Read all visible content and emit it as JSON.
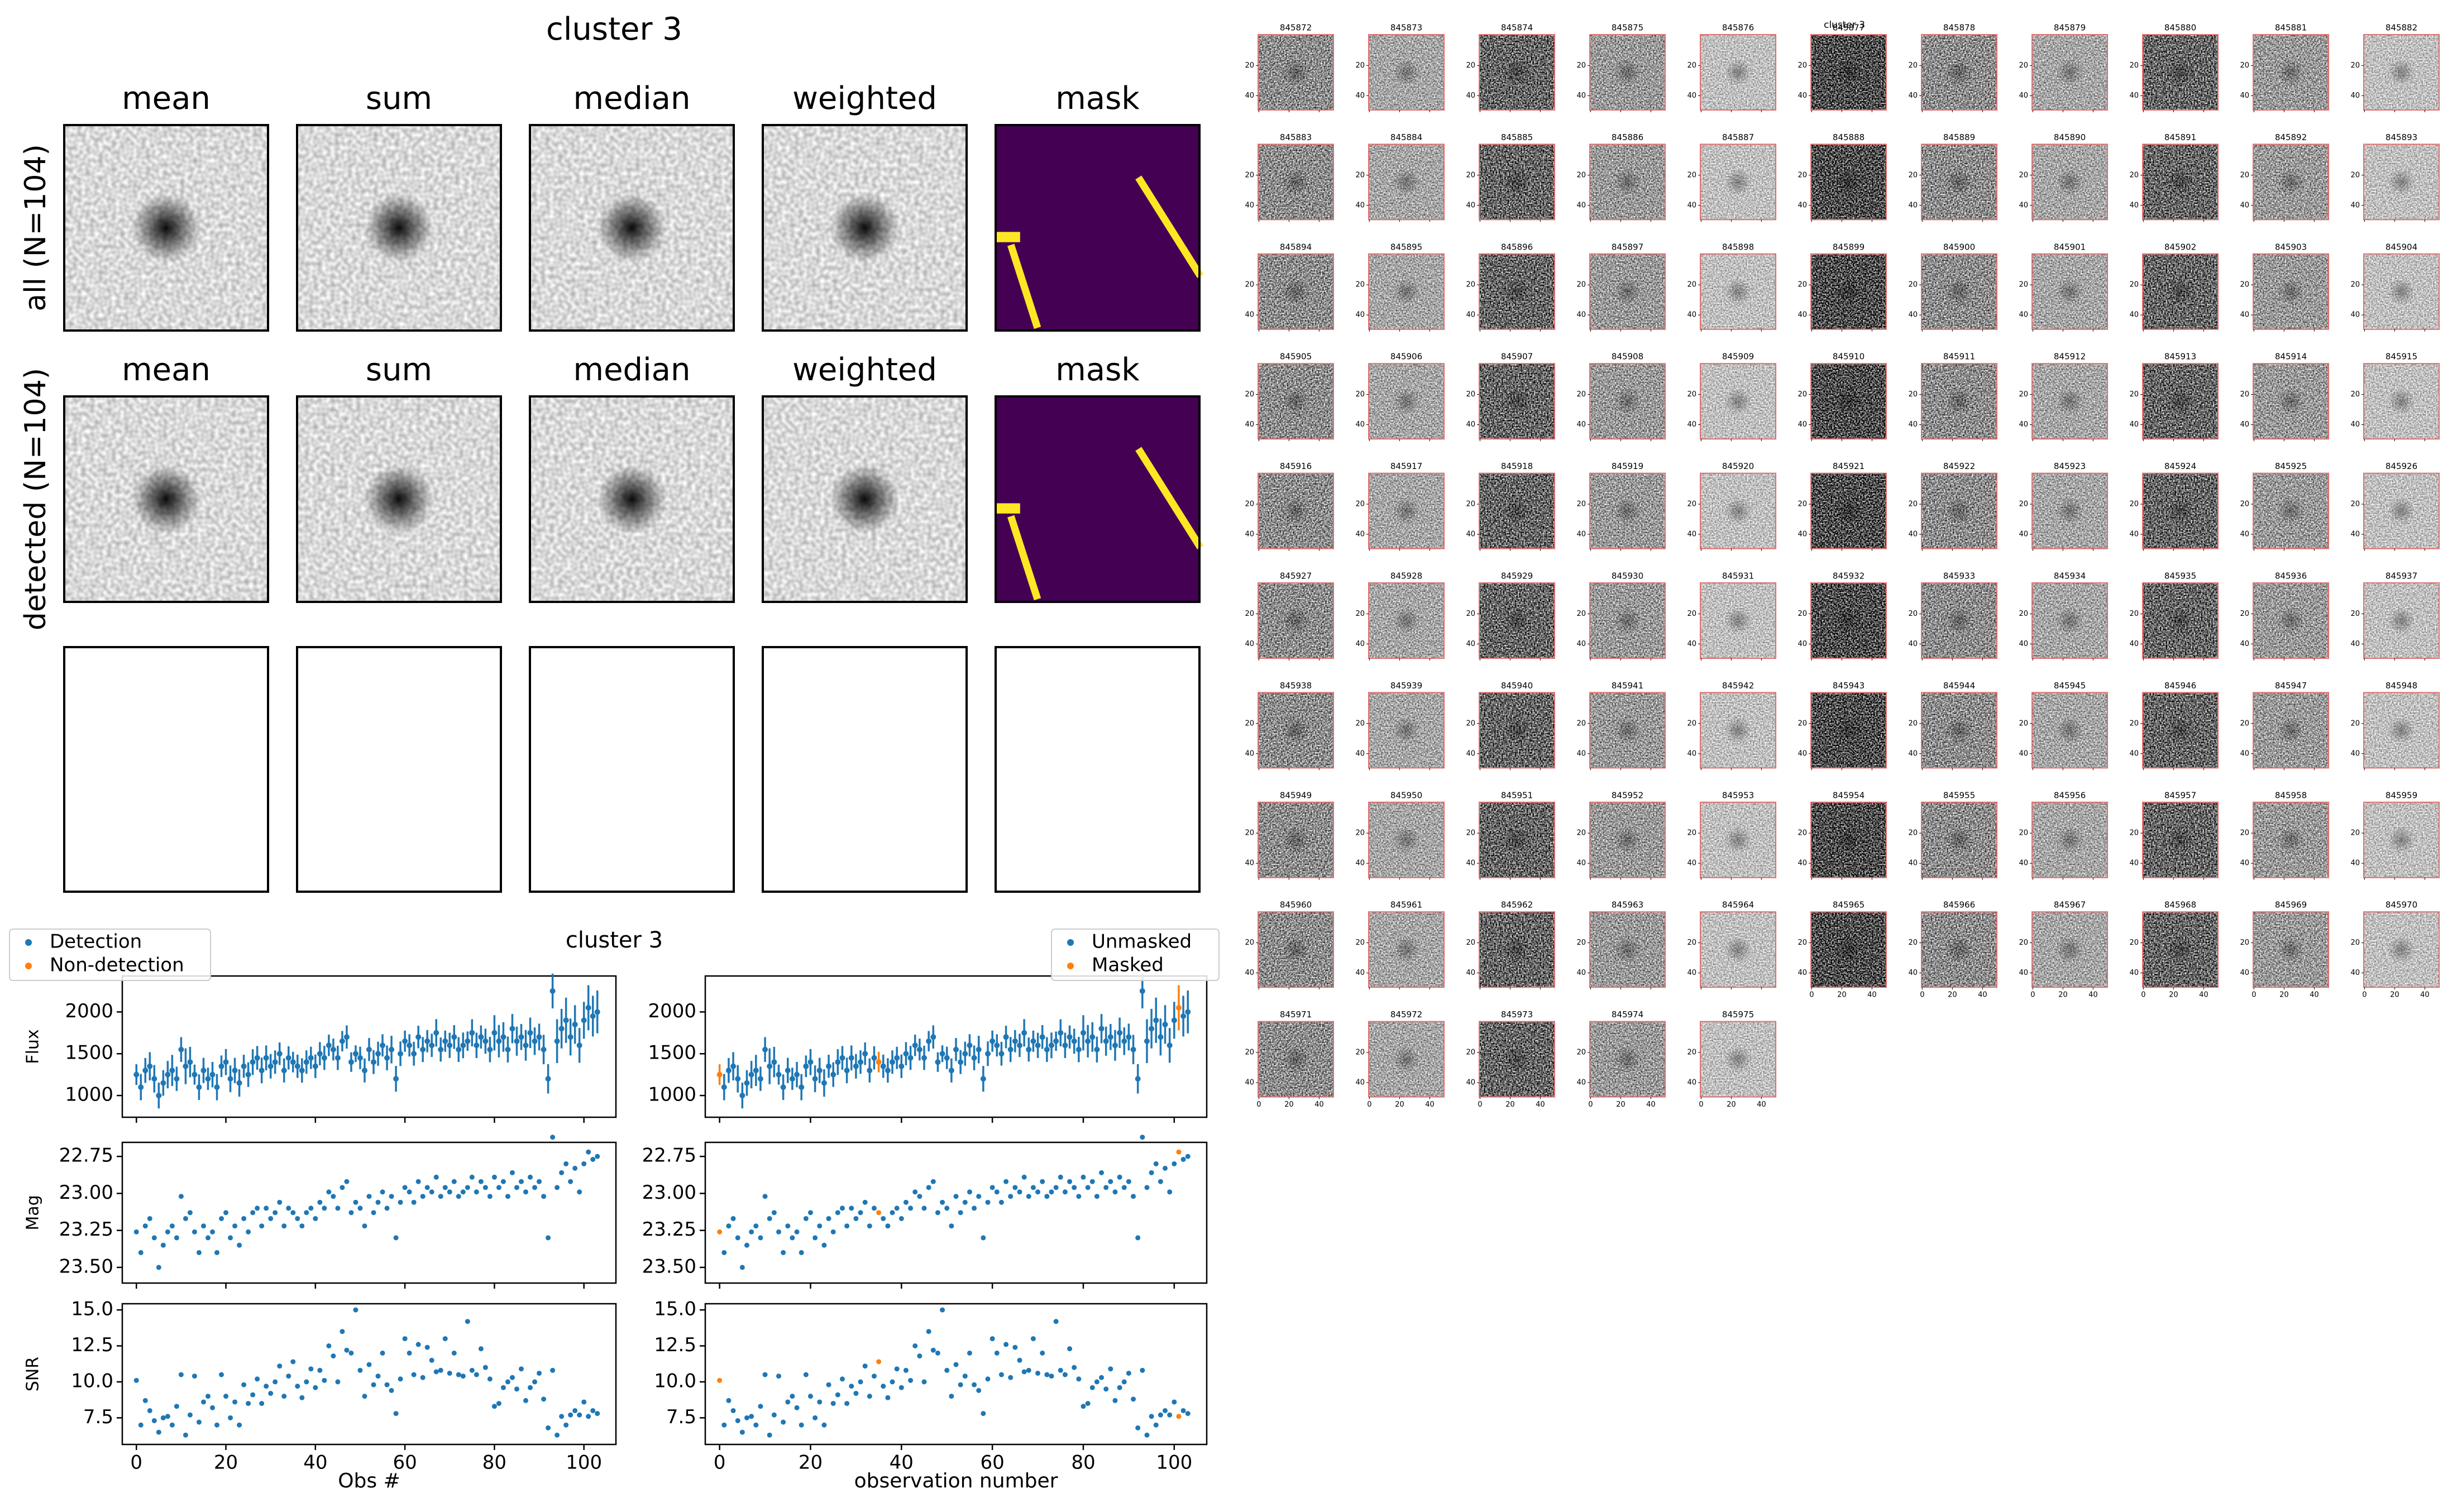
{
  "chart_data": [
    {
      "type": "image-grid",
      "title": "cluster 3",
      "columns": [
        "mean",
        "sum",
        "median",
        "weighted",
        "mask"
      ],
      "rows": [
        "all (N=104)",
        "detected (N=104)"
      ],
      "mask_colors": [
        "#440154",
        "#fde725"
      ]
    },
    {
      "type": "scatter",
      "title": "cluster 3",
      "x": [
        0,
        1,
        2,
        3,
        4,
        5,
        6,
        7,
        8,
        9,
        10,
        11,
        12,
        13,
        14,
        15,
        16,
        17,
        18,
        19,
        20,
        21,
        22,
        23,
        24,
        25,
        26,
        27,
        28,
        29,
        30,
        31,
        32,
        33,
        34,
        35,
        36,
        37,
        38,
        39,
        40,
        41,
        42,
        43,
        44,
        45,
        46,
        47,
        48,
        49,
        50,
        51,
        52,
        53,
        54,
        55,
        56,
        57,
        58,
        59,
        60,
        61,
        62,
        63,
        64,
        65,
        66,
        67,
        68,
        69,
        70,
        71,
        72,
        73,
        74,
        75,
        76,
        77,
        78,
        79,
        80,
        81,
        82,
        83,
        84,
        85,
        86,
        87,
        88,
        89,
        90,
        91,
        92,
        93,
        94,
        95,
        96,
        97,
        98,
        99,
        100,
        101,
        102,
        103
      ],
      "xlim": [
        -3.15,
        107.15
      ],
      "xticks": [
        0,
        20,
        40,
        60,
        80,
        100
      ],
      "xlabels": [
        "Obs #",
        "observation number"
      ],
      "legends": [
        [
          "Detection",
          "Non-detection"
        ],
        [
          "Unmasked",
          "Masked"
        ]
      ],
      "colors": [
        "#1f77b4",
        "#ff7f0e"
      ],
      "masked": [
        0,
        35,
        101
      ],
      "panels": [
        {
          "ylabel": "Flux",
          "ylim": [
            740,
            2430
          ],
          "yticks": [
            1000,
            1500,
            2000
          ],
          "values": [
            1250,
            1100,
            1300,
            1350,
            1200,
            1000,
            1150,
            1250,
            1300,
            1200,
            1550,
            1350,
            1400,
            1250,
            1100,
            1300,
            1200,
            1250,
            1100,
            1350,
            1400,
            1200,
            1300,
            1150,
            1350,
            1250,
            1400,
            1450,
            1300,
            1450,
            1350,
            1400,
            1500,
            1300,
            1450,
            1400,
            1350,
            1300,
            1400,
            1450,
            1350,
            1500,
            1450,
            1600,
            1550,
            1450,
            1650,
            1700,
            1400,
            1500,
            1450,
            1300,
            1550,
            1400,
            1500,
            1600,
            1450,
            1550,
            1200,
            1500,
            1650,
            1600,
            1500,
            1700,
            1550,
            1650,
            1600,
            1750,
            1550,
            1650,
            1600,
            1700,
            1550,
            1600,
            1650,
            1750,
            1600,
            1700,
            1650,
            1550,
            1750,
            1650,
            1700,
            1550,
            1800,
            1650,
            1700,
            1600,
            1750,
            1650,
            1700,
            1550,
            1200,
            2250,
            1650,
            1800,
            1900,
            1700,
            1850,
            1600,
            1900,
            2050,
            1950,
            2000
          ],
          "errors": [
            124,
            157,
            149,
            169,
            164,
            154,
            153,
            164,
            186,
            145,
            148,
            214,
            182,
            120,
            153,
            151,
            133,
            152,
            157,
            129,
            156,
            160,
            151,
            164,
            138,
            147,
            154,
            142,
            153,
            149,
            147,
            140,
            135,
            144,
            139,
            123,
            139,
            146,
            140,
            133,
            141,
            139,
            144,
            128,
            131,
            145,
            122,
            139,
            117,
            100,
            134,
            144,
            138,
            143,
            144,
            133,
            148,
            165,
            154,
            147,
            127,
            133,
            143,
            135,
            150,
            133,
            139,
            164,
            144,
            127,
            151,
            142,
            148,
            154,
            116,
            162,
            152,
            138,
            150,
            152,
            211,
            194,
            177,
            155,
            175,
            174,
            156,
            184,
            182,
            165,
            160,
            176,
            176,
            208,
            262,
            237,
            271,
            221,
            231,
            208,
            221,
            270,
            244,
            256
          ]
        },
        {
          "ylabel": "Mag",
          "ylim": [
            23.606,
            22.655
          ],
          "yticks": [
            {
              "value": 22.75,
              "label": "22.75"
            },
            {
              "value": 23,
              "label": "23.00"
            },
            {
              "value": 23.25,
              "label": "23.25"
            },
            {
              "value": 23.5,
              "label": "23.50"
            }
          ],
          "values": [
            23.26,
            23.4,
            23.22,
            23.17,
            23.3,
            23.5,
            23.35,
            23.26,
            23.22,
            23.3,
            23.02,
            23.17,
            23.13,
            23.26,
            23.4,
            23.22,
            23.3,
            23.26,
            23.4,
            23.17,
            23.13,
            23.3,
            23.22,
            23.35,
            23.17,
            23.26,
            23.13,
            23.1,
            23.22,
            23.1,
            23.17,
            23.13,
            23.06,
            23.22,
            23.1,
            23.13,
            23.17,
            23.22,
            23.13,
            23.1,
            23.17,
            23.06,
            23.1,
            22.99,
            23.02,
            23.1,
            22.96,
            22.92,
            23.13,
            23.06,
            23.1,
            23.22,
            23.02,
            23.13,
            23.06,
            22.99,
            23.1,
            23.02,
            23.3,
            23.06,
            22.96,
            22.99,
            23.06,
            22.92,
            23.02,
            22.96,
            22.99,
            22.89,
            23.02,
            22.96,
            22.99,
            22.92,
            23.02,
            22.99,
            22.96,
            22.89,
            22.99,
            22.92,
            22.96,
            23.02,
            22.89,
            22.96,
            22.92,
            23.02,
            22.86,
            22.96,
            22.92,
            22.99,
            22.89,
            22.96,
            22.92,
            23.02,
            23.3,
            22.62,
            22.96,
            22.86,
            22.8,
            22.92,
            22.83,
            22.99,
            22.8,
            22.72,
            22.77,
            22.75
          ]
        },
        {
          "ylabel": "SNR",
          "ylim": [
            5.65,
            15.43
          ],
          "yticks": [
            7.5,
            {
              "value": 10,
              "label": "10.0"
            },
            12.5,
            {
              "value": 15,
              "label": "15.0"
            }
          ],
          "values": [
            10.1,
            7.0,
            8.7,
            8.0,
            7.3,
            6.5,
            7.5,
            7.6,
            7.0,
            8.3,
            10.5,
            6.3,
            7.7,
            10.4,
            7.2,
            8.6,
            9.0,
            8.2,
            7.0,
            10.5,
            9.0,
            7.5,
            8.6,
            7.0,
            9.8,
            8.5,
            9.1,
            10.2,
            8.5,
            9.7,
            9.2,
            10.0,
            11.1,
            9.0,
            10.4,
            11.4,
            9.7,
            8.9,
            10.0,
            10.9,
            9.6,
            10.8,
            10.1,
            12.5,
            11.8,
            10.0,
            13.5,
            12.2,
            12.0,
            15.0,
            10.8,
            9.0,
            11.2,
            9.8,
            10.4,
            12.0,
            9.8,
            9.4,
            7.8,
            10.2,
            13.0,
            12.0,
            10.5,
            12.6,
            10.3,
            12.4,
            11.5,
            10.7,
            10.8,
            13.0,
            10.6,
            12.0,
            10.5,
            10.4,
            14.2,
            10.8,
            10.5,
            12.3,
            11.0,
            10.2,
            8.3,
            8.5,
            9.6,
            10.0,
            10.3,
            9.5,
            10.9,
            8.7,
            9.6,
            10.0,
            10.6,
            8.8,
            6.8,
            10.8,
            6.3,
            7.6,
            7.0,
            7.7,
            8.0,
            7.7,
            8.6,
            7.6,
            8.0,
            7.8
          ]
        }
      ]
    },
    {
      "type": "thumbnail-grid",
      "title": "cluster 3",
      "labels": [
        845872,
        845873,
        845874,
        845875,
        845876,
        845877,
        845878,
        845879,
        845880,
        845881,
        845882,
        845883,
        845884,
        845885,
        845886,
        845887,
        845888,
        845889,
        845890,
        845891,
        845892,
        845893,
        845894,
        845895,
        845896,
        845897,
        845898,
        845899,
        845900,
        845901,
        845902,
        845903,
        845904,
        845905,
        845906,
        845907,
        845908,
        845909,
        845910,
        845911,
        845912,
        845913,
        845914,
        845915,
        845916,
        845917,
        845918,
        845919,
        845920,
        845921,
        845922,
        845923,
        845924,
        845925,
        845926,
        845927,
        845928,
        845929,
        845930,
        845931,
        845932,
        845933,
        845934,
        845935,
        845936,
        845937,
        845938,
        845939,
        845940,
        845941,
        845942,
        845943,
        845944,
        845945,
        845946,
        845947,
        845948,
        845949,
        845950,
        845951,
        845952,
        845953,
        845954,
        845955,
        845956,
        845957,
        845958,
        845959,
        845960,
        845961,
        845962,
        845963,
        845964,
        845965,
        845966,
        845967,
        845968,
        845969,
        845970,
        845971,
        845972,
        845973,
        845974,
        845975
      ],
      "xlim": [
        -0.5,
        49.5
      ],
      "ylim": [
        49.5,
        -0.5
      ],
      "xticks": [
        0,
        20,
        40
      ],
      "yticks": [
        20,
        40
      ],
      "frame_color": "#e07070"
    }
  ]
}
